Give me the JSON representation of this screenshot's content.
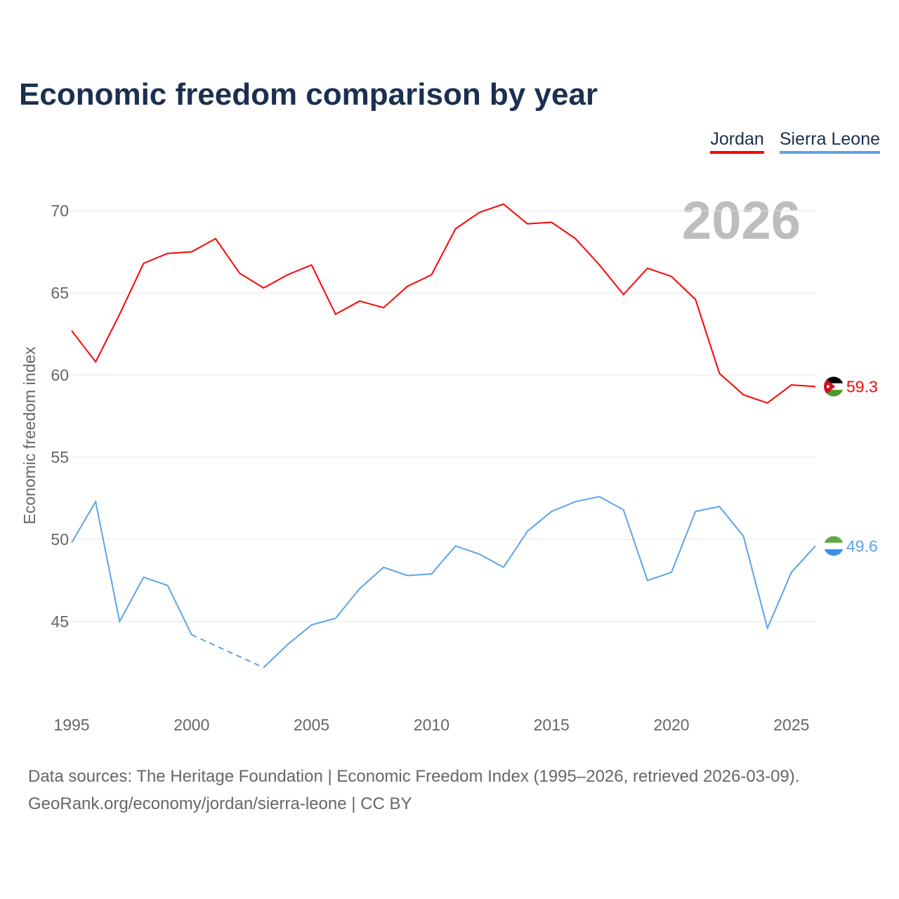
{
  "title": "Economic freedom comparison by year",
  "legend": [
    {
      "name": "Jordan",
      "color": "#ff0000"
    },
    {
      "name": "Sierra Leone",
      "color": "#5ba4e9"
    }
  ],
  "year_watermark": "2026",
  "footer": {
    "line1": "Data sources: The Heritage Foundation | Economic Freedom Index (1995–2026, retrieved 2026-03-09).",
    "line2": "GeoRank.org/economy/jordan/sierra-leone | CC BY"
  },
  "chart_data": {
    "type": "line",
    "title": "Economic freedom comparison by year",
    "xlabel": "",
    "ylabel": "Economic freedom index",
    "xlim": [
      1995,
      2026
    ],
    "ylim": [
      39.7,
      72.5
    ],
    "xticks": [
      1995,
      2000,
      2005,
      2010,
      2015,
      2020,
      2025
    ],
    "yticks": [
      45,
      50,
      55,
      60,
      65,
      70
    ],
    "grid": true,
    "legend_position": "top-right",
    "x": [
      1995,
      1996,
      1997,
      1998,
      1999,
      2000,
      2001,
      2002,
      2003,
      2004,
      2005,
      2006,
      2007,
      2008,
      2009,
      2010,
      2011,
      2012,
      2013,
      2014,
      2015,
      2016,
      2017,
      2018,
      2019,
      2020,
      2021,
      2022,
      2023,
      2024,
      2025,
      2026
    ],
    "series": [
      {
        "name": "Jordan",
        "color": "#ff0000",
        "end_label": "59.3",
        "values": [
          62.7,
          60.8,
          63.7,
          66.8,
          67.4,
          67.5,
          68.3,
          66.2,
          65.3,
          66.1,
          66.7,
          63.7,
          64.5,
          64.1,
          65.4,
          66.1,
          68.9,
          69.9,
          70.4,
          69.2,
          69.3,
          68.3,
          66.7,
          64.9,
          66.5,
          66.0,
          64.6,
          60.1,
          58.8,
          58.3,
          59.4,
          59.3
        ]
      },
      {
        "name": "Sierra Leone",
        "color": "#5ba4e9",
        "end_label": "49.6",
        "values": [
          49.8,
          52.3,
          45.0,
          47.7,
          47.2,
          44.2,
          null,
          null,
          42.2,
          43.6,
          44.8,
          45.2,
          47.0,
          48.3,
          47.8,
          47.9,
          49.6,
          49.1,
          48.3,
          50.5,
          51.7,
          52.3,
          52.6,
          51.8,
          47.5,
          48.0,
          51.7,
          52.0,
          50.2,
          44.6,
          48.0,
          49.6
        ]
      }
    ]
  }
}
